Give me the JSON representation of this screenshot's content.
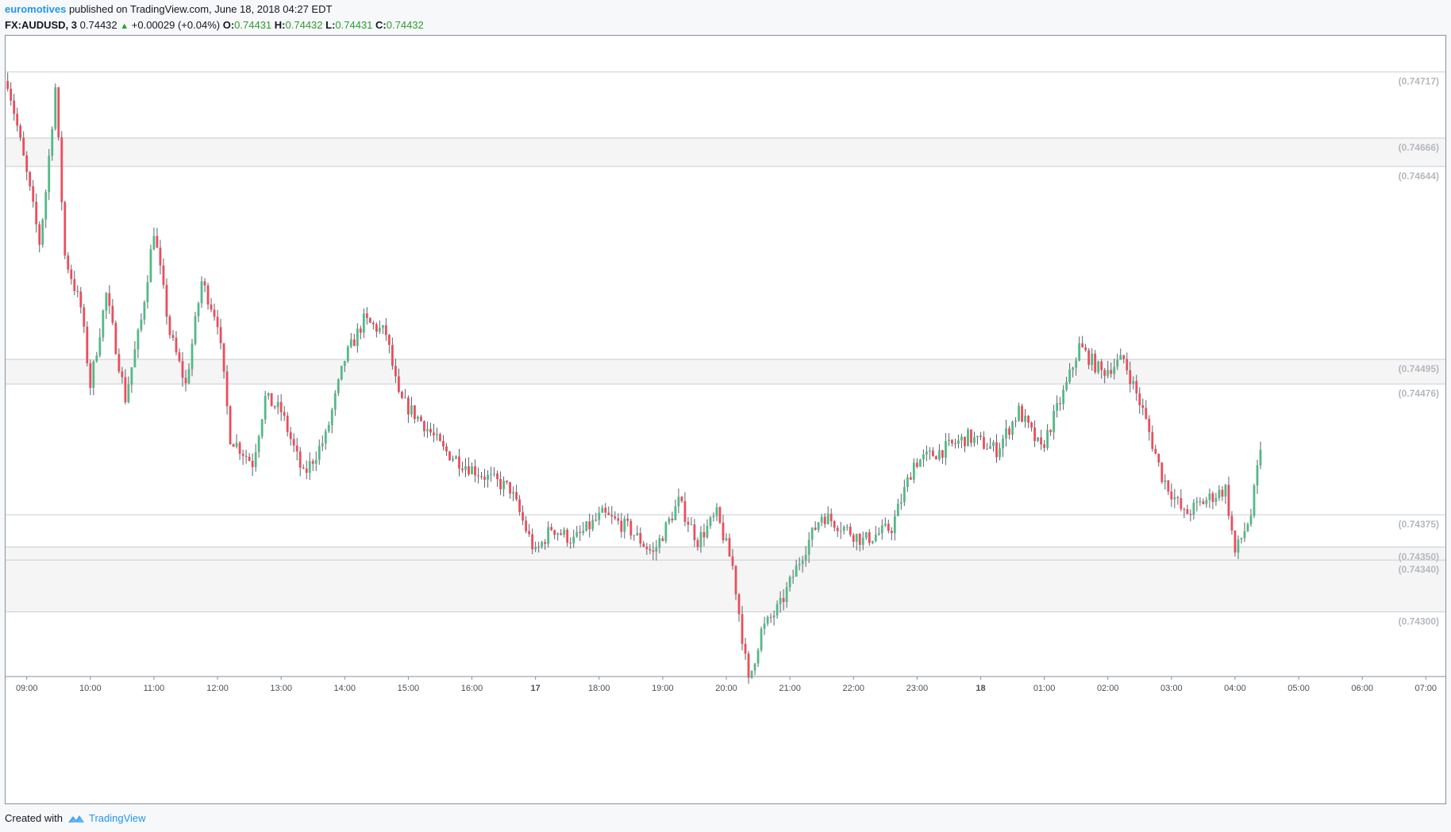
{
  "header": {
    "author": "euromotives",
    "published": "published on TradingView.com, June 18, 2018 04:27 EDT",
    "symbol": "FX:AUDUSD, 3",
    "last": "0.74432",
    "change": "+0.00029 (+0.04%)",
    "o_label": "O:",
    "o_value": "0.74431",
    "h_label": "H:",
    "h_value": "0.74432",
    "l_label": "L:",
    "l_value": "0.74431",
    "c_label": "C:",
    "c_value": "0.74432"
  },
  "footer": {
    "created_with": "Created with",
    "brand": "TradingView"
  },
  "colors": {
    "up": "#53b987",
    "down": "#eb4d5c",
    "level_line": "#c8ccd2",
    "zone_fill": "#f5f5f5",
    "level_text": "#b4b8be"
  },
  "chart_data": {
    "type": "candlestick",
    "ylim": [
      0.7425,
      0.74745
    ],
    "x_range_hours": [
      8.6667,
      31.3333
    ],
    "x_ticks": [
      {
        "label": "09:00",
        "h": 9
      },
      {
        "label": "10:00",
        "h": 10
      },
      {
        "label": "11:00",
        "h": 11
      },
      {
        "label": "12:00",
        "h": 12
      },
      {
        "label": "13:00",
        "h": 13
      },
      {
        "label": "14:00",
        "h": 14
      },
      {
        "label": "15:00",
        "h": 15
      },
      {
        "label": "16:00",
        "h": 16
      },
      {
        "label": "17",
        "h": 17,
        "bold": true
      },
      {
        "label": "18:00",
        "h": 18
      },
      {
        "label": "19:00",
        "h": 19
      },
      {
        "label": "20:00",
        "h": 20
      },
      {
        "label": "21:00",
        "h": 21
      },
      {
        "label": "22:00",
        "h": 22
      },
      {
        "label": "23:00",
        "h": 23
      },
      {
        "label": "18",
        "h": 24,
        "bold": true
      },
      {
        "label": "01:00",
        "h": 25
      },
      {
        "label": "02:00",
        "h": 26
      },
      {
        "label": "03:00",
        "h": 27
      },
      {
        "label": "04:00",
        "h": 28
      },
      {
        "label": "05:00",
        "h": 29
      },
      {
        "label": "06:00",
        "h": 30
      },
      {
        "label": "07:00",
        "h": 31
      }
    ],
    "levels": [
      {
        "value": 0.74717,
        "label": "(0.74717)"
      },
      {
        "value": 0.74666,
        "label": "(0.74666)"
      },
      {
        "value": 0.74644,
        "label": "(0.74644)"
      },
      {
        "value": 0.74495,
        "label": "(0.74495)"
      },
      {
        "value": 0.74476,
        "label": "(0.74476)"
      },
      {
        "value": 0.74375,
        "label": "(0.74375)"
      },
      {
        "value": 0.7435,
        "label": "(0.74350)"
      },
      {
        "value": 0.7434,
        "label": "(0.74340)"
      },
      {
        "value": 0.743,
        "label": "(0.74300)"
      }
    ],
    "zones": [
      [
        0.74666,
        0.74644
      ],
      [
        0.74495,
        0.74476
      ],
      [
        0.7435,
        0.7434
      ],
      [
        0.7434,
        0.743
      ]
    ],
    "path_anchors": [
      [
        8.7,
        0.7471
      ],
      [
        8.85,
        0.74675
      ],
      [
        9.05,
        0.74625
      ],
      [
        9.2,
        0.74585
      ],
      [
        9.3,
        0.74625
      ],
      [
        9.45,
        0.74705
      ],
      [
        9.6,
        0.74575
      ],
      [
        9.85,
        0.74535
      ],
      [
        10.0,
        0.74475
      ],
      [
        10.25,
        0.74545
      ],
      [
        10.55,
        0.74465
      ],
      [
        10.8,
        0.74525
      ],
      [
        11.0,
        0.74595
      ],
      [
        11.25,
        0.74515
      ],
      [
        11.5,
        0.74475
      ],
      [
        11.75,
        0.74555
      ],
      [
        12.0,
        0.74525
      ],
      [
        12.2,
        0.74435
      ],
      [
        12.55,
        0.74415
      ],
      [
        12.75,
        0.74465
      ],
      [
        13.0,
        0.74455
      ],
      [
        13.35,
        0.74405
      ],
      [
        13.7,
        0.74435
      ],
      [
        14.0,
        0.74495
      ],
      [
        14.3,
        0.74525
      ],
      [
        14.65,
        0.74515
      ],
      [
        14.85,
        0.74465
      ],
      [
        15.25,
        0.74445
      ],
      [
        15.55,
        0.74425
      ],
      [
        15.85,
        0.74415
      ],
      [
        16.2,
        0.74405
      ],
      [
        16.6,
        0.74395
      ],
      [
        17.0,
        0.74345
      ],
      [
        17.25,
        0.74365
      ],
      [
        17.6,
        0.74355
      ],
      [
        18.05,
        0.74375
      ],
      [
        18.45,
        0.74365
      ],
      [
        18.85,
        0.74345
      ],
      [
        19.25,
        0.74385
      ],
      [
        19.55,
        0.74355
      ],
      [
        19.85,
        0.74375
      ],
      [
        20.1,
        0.74335
      ],
      [
        20.35,
        0.74245
      ],
      [
        20.55,
        0.74285
      ],
      [
        20.85,
        0.74305
      ],
      [
        21.2,
        0.74345
      ],
      [
        21.5,
        0.74375
      ],
      [
        21.85,
        0.74365
      ],
      [
        22.15,
        0.74355
      ],
      [
        22.6,
        0.74365
      ],
      [
        22.95,
        0.74415
      ],
      [
        23.4,
        0.74425
      ],
      [
        23.8,
        0.74435
      ],
      [
        24.25,
        0.74425
      ],
      [
        24.6,
        0.74455
      ],
      [
        24.95,
        0.74425
      ],
      [
        25.35,
        0.74475
      ],
      [
        25.55,
        0.74505
      ],
      [
        25.9,
        0.74485
      ],
      [
        26.25,
        0.74495
      ],
      [
        26.55,
        0.74455
      ],
      [
        26.85,
        0.74405
      ],
      [
        27.2,
        0.74375
      ],
      [
        27.5,
        0.74385
      ],
      [
        27.85,
        0.74395
      ],
      [
        28.0,
        0.74345
      ],
      [
        28.25,
        0.74375
      ],
      [
        28.42,
        0.74432
      ]
    ],
    "last_hour": 28.42,
    "candle_minutes": 3
  }
}
